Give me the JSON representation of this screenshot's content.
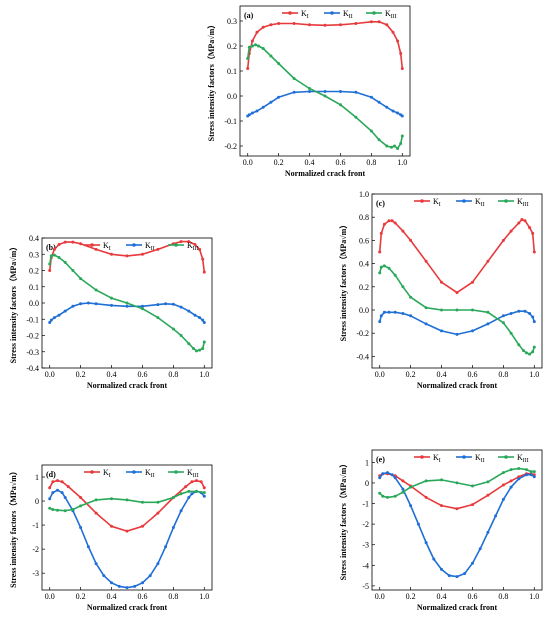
{
  "figure": {
    "colors": {
      "KI": "#e8393c",
      "KII": "#1f6fd6",
      "KIII": "#2aa85a"
    },
    "legend": {
      "KI": "K",
      "KI_sub": "I",
      "KII": "K",
      "KII_sub": "II",
      "KIII": "K",
      "KIII_sub": "III"
    }
  },
  "chart_data": [
    {
      "panel": "(a)",
      "type": "line",
      "xlabel": "Normalized crack front",
      "ylabel": "Stress intensity factors（MPa√m）",
      "xlim": [
        -0.05,
        1.05
      ],
      "ylim": [
        -0.24,
        0.36
      ],
      "xticks": [
        "0.0",
        "0.2",
        "0.4",
        "0.6",
        "0.8",
        "1.0"
      ],
      "xtick_values": [
        0,
        0.2,
        0.4,
        0.6,
        0.8,
        1.0
      ],
      "yticks": [
        "-0.2",
        "-0.1",
        "0.0",
        "0.1",
        "0.2",
        "0.3"
      ],
      "ytick_values": [
        -0.2,
        -0.1,
        0,
        0.1,
        0.2,
        0.3
      ],
      "legend_position": "top",
      "series": [
        {
          "name": "KI",
          "x": [
            0,
            0.01,
            0.03,
            0.06,
            0.1,
            0.15,
            0.2,
            0.3,
            0.4,
            0.5,
            0.6,
            0.7,
            0.8,
            0.85,
            0.9,
            0.94,
            0.97,
            0.99,
            1.0
          ],
          "y": [
            0.11,
            0.17,
            0.22,
            0.255,
            0.275,
            0.285,
            0.29,
            0.29,
            0.285,
            0.283,
            0.285,
            0.29,
            0.297,
            0.297,
            0.285,
            0.255,
            0.22,
            0.17,
            0.11
          ]
        },
        {
          "name": "KII",
          "x": [
            0,
            0.01,
            0.03,
            0.06,
            0.1,
            0.15,
            0.2,
            0.3,
            0.4,
            0.5,
            0.6,
            0.7,
            0.8,
            0.85,
            0.9,
            0.94,
            0.97,
            0.99,
            1.0
          ],
          "y": [
            -0.08,
            -0.075,
            -0.068,
            -0.06,
            -0.045,
            -0.025,
            -0.005,
            0.015,
            0.018,
            0.018,
            0.018,
            0.015,
            -0.005,
            -0.025,
            -0.045,
            -0.06,
            -0.068,
            -0.075,
            -0.08
          ]
        },
        {
          "name": "KIII",
          "x": [
            0,
            0.01,
            0.03,
            0.05,
            0.07,
            0.1,
            0.15,
            0.2,
            0.3,
            0.4,
            0.5,
            0.6,
            0.7,
            0.8,
            0.85,
            0.9,
            0.93,
            0.95,
            0.97,
            0.99,
            1.0
          ],
          "y": [
            0.15,
            0.195,
            0.2,
            0.205,
            0.2,
            0.19,
            0.16,
            0.13,
            0.07,
            0.03,
            0,
            -0.035,
            -0.085,
            -0.14,
            -0.175,
            -0.2,
            -0.205,
            -0.2,
            -0.21,
            -0.19,
            -0.16
          ]
        }
      ]
    },
    {
      "panel": "(b)",
      "type": "line",
      "xlabel": "Normalized crack front",
      "ylabel": "Stress intensity factors（MPa√m）",
      "xlim": [
        -0.05,
        1.05
      ],
      "ylim": [
        -0.4,
        0.4
      ],
      "xticks": [
        "0.0",
        "0.2",
        "0.4",
        "0.6",
        "0.8",
        "1.0"
      ],
      "xtick_values": [
        0,
        0.2,
        0.4,
        0.6,
        0.8,
        1.0
      ],
      "yticks": [
        "-0.4",
        "-0.3",
        "-0.2",
        "-0.1",
        "0.0",
        "0.1",
        "0.2",
        "0.3",
        "0.4"
      ],
      "ytick_values": [
        -0.4,
        -0.3,
        -0.2,
        -0.1,
        0,
        0.1,
        0.2,
        0.3,
        0.4
      ],
      "legend_position": "top",
      "series": [
        {
          "name": "KI",
          "x": [
            0,
            0.01,
            0.03,
            0.06,
            0.1,
            0.15,
            0.2,
            0.3,
            0.4,
            0.5,
            0.6,
            0.7,
            0.8,
            0.85,
            0.9,
            0.94,
            0.97,
            0.99,
            1.0
          ],
          "y": [
            0.2,
            0.28,
            0.33,
            0.36,
            0.375,
            0.375,
            0.365,
            0.33,
            0.3,
            0.29,
            0.3,
            0.33,
            0.365,
            0.378,
            0.378,
            0.36,
            0.33,
            0.27,
            0.19
          ]
        },
        {
          "name": "KII",
          "x": [
            0,
            0.01,
            0.03,
            0.06,
            0.1,
            0.15,
            0.2,
            0.25,
            0.3,
            0.4,
            0.5,
            0.6,
            0.7,
            0.75,
            0.8,
            0.85,
            0.9,
            0.94,
            0.97,
            0.99,
            1.0
          ],
          "y": [
            -0.12,
            -0.105,
            -0.09,
            -0.075,
            -0.05,
            -0.02,
            -0.005,
            0,
            -0.005,
            -0.015,
            -0.02,
            -0.02,
            -0.01,
            -0.005,
            -0.008,
            -0.025,
            -0.05,
            -0.075,
            -0.09,
            -0.105,
            -0.12
          ]
        },
        {
          "name": "KIII",
          "x": [
            0,
            0.01,
            0.03,
            0.06,
            0.1,
            0.15,
            0.2,
            0.3,
            0.4,
            0.5,
            0.6,
            0.7,
            0.8,
            0.85,
            0.9,
            0.93,
            0.95,
            0.97,
            0.99,
            1.0
          ],
          "y": [
            0.24,
            0.29,
            0.295,
            0.28,
            0.25,
            0.2,
            0.15,
            0.08,
            0.03,
            0,
            -0.035,
            -0.09,
            -0.16,
            -0.2,
            -0.25,
            -0.28,
            -0.295,
            -0.29,
            -0.28,
            -0.24
          ]
        }
      ]
    },
    {
      "panel": "(c)",
      "type": "line",
      "xlabel": "Normalized crack front",
      "ylabel": "Stress intensity factors（MPa√m）",
      "xlim": [
        -0.05,
        1.05
      ],
      "ylim": [
        -0.5,
        1.0
      ],
      "xticks": [
        "0.0",
        "0.2",
        "0.4",
        "0.6",
        "0.8",
        "1.0"
      ],
      "xtick_values": [
        0,
        0.2,
        0.4,
        0.6,
        0.8,
        1.0
      ],
      "yticks": [
        "-0.4",
        "-0.2",
        "0.0",
        "0.2",
        "0.4",
        "0.6",
        "0.8",
        "1.0"
      ],
      "ytick_values": [
        -0.4,
        -0.2,
        0,
        0.2,
        0.4,
        0.6,
        0.8,
        1.0
      ],
      "legend_position": "top",
      "series": [
        {
          "name": "KI",
          "x": [
            0,
            0.01,
            0.03,
            0.06,
            0.08,
            0.1,
            0.15,
            0.2,
            0.3,
            0.4,
            0.5,
            0.6,
            0.7,
            0.8,
            0.85,
            0.9,
            0.92,
            0.94,
            0.97,
            0.99,
            1.0
          ],
          "y": [
            0.5,
            0.66,
            0.74,
            0.77,
            0.77,
            0.75,
            0.68,
            0.6,
            0.42,
            0.24,
            0.15,
            0.24,
            0.42,
            0.6,
            0.68,
            0.75,
            0.78,
            0.77,
            0.71,
            0.66,
            0.5
          ]
        },
        {
          "name": "KII",
          "x": [
            0,
            0.01,
            0.03,
            0.06,
            0.1,
            0.15,
            0.2,
            0.3,
            0.4,
            0.5,
            0.6,
            0.7,
            0.8,
            0.85,
            0.9,
            0.94,
            0.97,
            0.99,
            1.0
          ],
          "y": [
            -0.1,
            -0.05,
            -0.02,
            -0.02,
            -0.02,
            -0.03,
            -0.05,
            -0.12,
            -0.18,
            -0.21,
            -0.18,
            -0.12,
            -0.05,
            -0.03,
            -0.01,
            -0.01,
            -0.03,
            -0.06,
            -0.1
          ]
        },
        {
          "name": "KIII",
          "x": [
            0,
            0.01,
            0.03,
            0.06,
            0.1,
            0.15,
            0.2,
            0.3,
            0.4,
            0.5,
            0.6,
            0.7,
            0.8,
            0.85,
            0.9,
            0.93,
            0.95,
            0.97,
            0.99,
            1.0
          ],
          "y": [
            0.32,
            0.37,
            0.38,
            0.36,
            0.3,
            0.2,
            0.11,
            0.02,
            0,
            0,
            0,
            -0.02,
            -0.11,
            -0.2,
            -0.3,
            -0.35,
            -0.37,
            -0.38,
            -0.36,
            -0.32
          ]
        }
      ]
    },
    {
      "panel": "(d)",
      "type": "line",
      "xlabel": "Normalized crack front",
      "ylabel": "Stress intensity factors（MPa√m）",
      "xlim": [
        -0.05,
        1.05
      ],
      "ylim": [
        -3.7,
        1.5
      ],
      "xticks": [
        "0.0",
        "0.2",
        "0.4",
        "0.6",
        "0.8",
        "1.0"
      ],
      "xtick_values": [
        0,
        0.2,
        0.4,
        0.6,
        0.8,
        1.0
      ],
      "yticks": [
        "-3",
        "-2",
        "-1",
        "0",
        "1"
      ],
      "ytick_values": [
        -3,
        -2,
        -1,
        0,
        1
      ],
      "legend_position": "top",
      "series": [
        {
          "name": "KI",
          "x": [
            0,
            0.02,
            0.05,
            0.08,
            0.12,
            0.2,
            0.3,
            0.4,
            0.5,
            0.6,
            0.7,
            0.8,
            0.88,
            0.92,
            0.95,
            0.98,
            1.0
          ],
          "y": [
            0.55,
            0.8,
            0.85,
            0.8,
            0.6,
            0.15,
            -0.5,
            -1.05,
            -1.25,
            -1.05,
            -0.5,
            0.15,
            0.6,
            0.8,
            0.85,
            0.8,
            0.55
          ]
        },
        {
          "name": "KII",
          "x": [
            0,
            0.02,
            0.05,
            0.08,
            0.1,
            0.15,
            0.2,
            0.25,
            0.3,
            0.35,
            0.4,
            0.45,
            0.5,
            0.55,
            0.6,
            0.65,
            0.7,
            0.75,
            0.8,
            0.85,
            0.9,
            0.92,
            0.95,
            0.98,
            1.0
          ],
          "y": [
            0.1,
            0.35,
            0.45,
            0.35,
            0.15,
            -0.4,
            -1.1,
            -1.9,
            -2.6,
            -3.1,
            -3.4,
            -3.55,
            -3.6,
            -3.55,
            -3.4,
            -3.1,
            -2.6,
            -1.9,
            -1.1,
            -0.4,
            0.15,
            0.3,
            0.4,
            0.35,
            0.2
          ]
        },
        {
          "name": "KIII",
          "x": [
            0,
            0.02,
            0.05,
            0.1,
            0.15,
            0.2,
            0.3,
            0.4,
            0.5,
            0.6,
            0.7,
            0.8,
            0.85,
            0.9,
            0.95,
            1.0
          ],
          "y": [
            -0.3,
            -0.35,
            -0.38,
            -0.4,
            -0.35,
            -0.2,
            0.05,
            0.1,
            0.05,
            -0.05,
            -0.05,
            0.15,
            0.3,
            0.4,
            0.4,
            0.35
          ]
        }
      ]
    },
    {
      "panel": "(e)",
      "type": "line",
      "xlabel": "Normalized crack front",
      "ylabel": "Stress intensity factors（MPa√m）",
      "xlim": [
        -0.05,
        1.05
      ],
      "ylim": [
        -5.2,
        1.6
      ],
      "xticks": [
        "0.0",
        "0.2",
        "0.4",
        "0.6",
        "0.8",
        "1.0"
      ],
      "xtick_values": [
        0,
        0.2,
        0.4,
        0.6,
        0.8,
        1.0
      ],
      "yticks": [
        "-5",
        "-4",
        "-3",
        "-2",
        "-1",
        "0",
        "1"
      ],
      "ytick_values": [
        -5,
        -4,
        -3,
        -2,
        -1,
        0,
        1
      ],
      "legend_position": "top",
      "series": [
        {
          "name": "KI",
          "x": [
            0,
            0.02,
            0.05,
            0.1,
            0.15,
            0.2,
            0.3,
            0.4,
            0.5,
            0.6,
            0.7,
            0.8,
            0.85,
            0.9,
            0.95,
            0.98,
            1.0
          ],
          "y": [
            0.35,
            0.45,
            0.45,
            0.35,
            0.1,
            -0.15,
            -0.7,
            -1.1,
            -1.25,
            -1.05,
            -0.6,
            -0.1,
            0.1,
            0.3,
            0.45,
            0.45,
            0.4
          ]
        },
        {
          "name": "KII",
          "x": [
            0,
            0.02,
            0.05,
            0.08,
            0.1,
            0.15,
            0.2,
            0.25,
            0.3,
            0.35,
            0.4,
            0.45,
            0.5,
            0.55,
            0.6,
            0.65,
            0.7,
            0.75,
            0.8,
            0.85,
            0.9,
            0.95,
            0.98,
            1.0
          ],
          "y": [
            0.25,
            0.45,
            0.5,
            0.4,
            0.25,
            -0.3,
            -1.1,
            -2.0,
            -2.9,
            -3.7,
            -4.2,
            -4.5,
            -4.55,
            -4.4,
            -3.9,
            -3.2,
            -2.4,
            -1.6,
            -0.8,
            -0.2,
            0.2,
            0.4,
            0.4,
            0.3
          ]
        },
        {
          "name": "KIII",
          "x": [
            0,
            0.02,
            0.05,
            0.1,
            0.15,
            0.2,
            0.3,
            0.4,
            0.5,
            0.6,
            0.7,
            0.8,
            0.85,
            0.9,
            0.95,
            0.98,
            1.0
          ],
          "y": [
            -0.5,
            -0.65,
            -0.7,
            -0.65,
            -0.45,
            -0.2,
            0.1,
            0.15,
            0,
            -0.15,
            0.05,
            0.5,
            0.65,
            0.7,
            0.65,
            0.55,
            0.55
          ]
        }
      ]
    }
  ]
}
